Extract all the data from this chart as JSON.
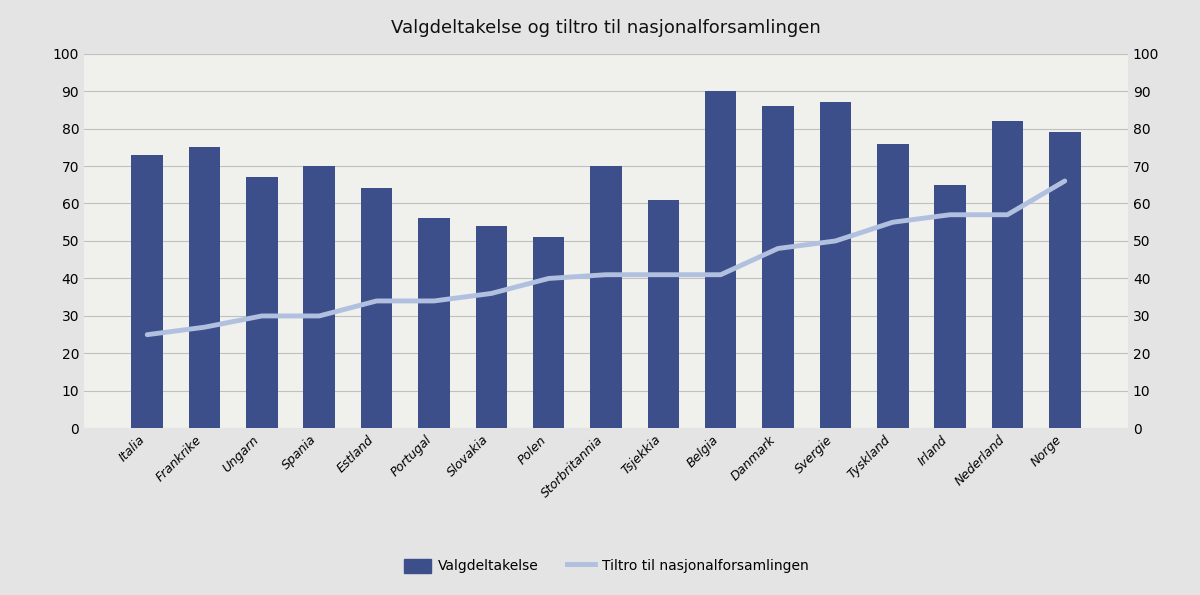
{
  "title": "Valgdeltakelse og tiltro til nasjonalforsamlingen",
  "categories": [
    "Italia",
    "Frankrike",
    "Ungarn",
    "Spania",
    "Estland",
    "Portugal",
    "Slovakia",
    "Polen",
    "Storbritannia",
    "Tsjekkia",
    "Belgia",
    "Danmark",
    "Svergie",
    "Tyskland",
    "Irland",
    "Nederland",
    "Norge"
  ],
  "bar_values": [
    73,
    75,
    67,
    70,
    64,
    56,
    54,
    51,
    70,
    61,
    90,
    86,
    87,
    76,
    65,
    82,
    79
  ],
  "line_values": [
    25,
    27,
    30,
    30,
    34,
    34,
    36,
    40,
    41,
    41,
    41,
    48,
    50,
    55,
    57,
    57,
    66
  ],
  "bar_color": "#3d4f8a",
  "line_color": "#b0c0de",
  "ylim": [
    0,
    100
  ],
  "yticks": [
    0,
    10,
    20,
    30,
    40,
    50,
    60,
    70,
    80,
    90,
    100
  ],
  "legend_bar_label": "Valgdeltakelse",
  "legend_line_label": "Tiltro til nasjonalforsamlingen",
  "background_color": "#e4e4e4",
  "plot_bg_color": "#f0f0ec",
  "title_fontsize": 13,
  "tick_fontsize": 10,
  "xticklabel_fontsize": 9
}
